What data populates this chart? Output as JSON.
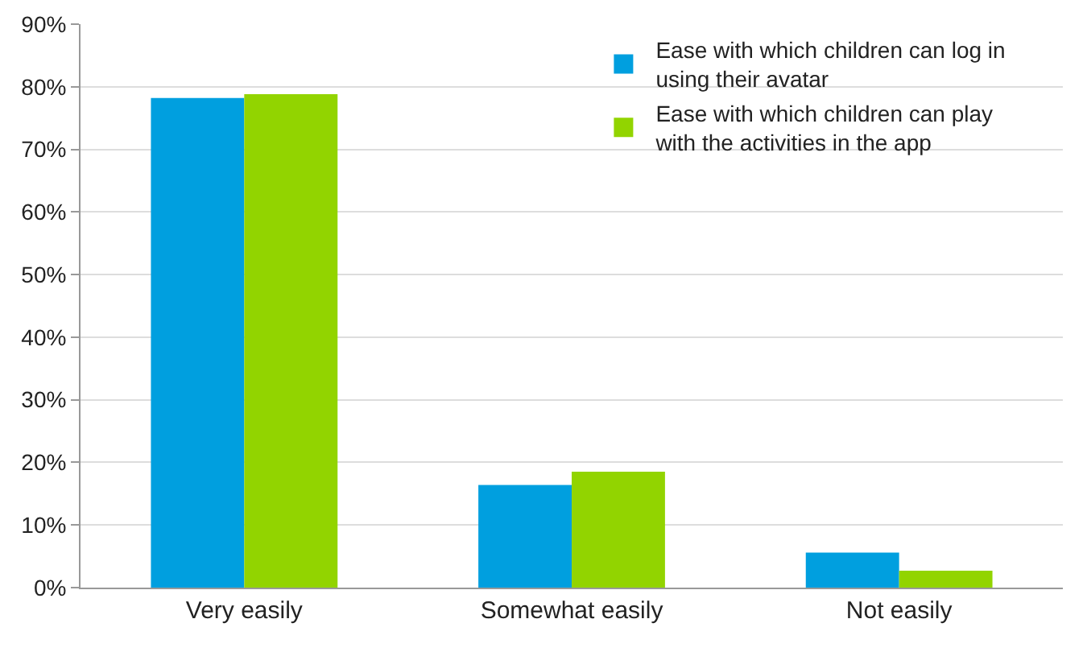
{
  "chart_data": {
    "type": "bar",
    "categories": [
      "Very easily",
      "Somewhat easily",
      "Not easily"
    ],
    "series": [
      {
        "name": "Ease with which children can log in using their avatar",
        "color": "#009fdf",
        "values": [
          78.2,
          16.4,
          5.6
        ]
      },
      {
        "name": "Ease with which children can play with the activities in the app",
        "color": "#92d400",
        "values": [
          78.8,
          18.5,
          2.7
        ]
      }
    ],
    "ylim": [
      0,
      90
    ],
    "yticks": [
      {
        "value": 0,
        "label": "0%"
      },
      {
        "value": 10,
        "label": "10%"
      },
      {
        "value": 20,
        "label": "20%"
      },
      {
        "value": 30,
        "label": "30%"
      },
      {
        "value": 40,
        "label": "40%"
      },
      {
        "value": 50,
        "label": "50%"
      },
      {
        "value": 60,
        "label": "60%"
      },
      {
        "value": 70,
        "label": "70%"
      },
      {
        "value": 80,
        "label": "80%"
      },
      {
        "value": 90,
        "label": "90%"
      }
    ],
    "grid": "y",
    "legend": "top right"
  }
}
